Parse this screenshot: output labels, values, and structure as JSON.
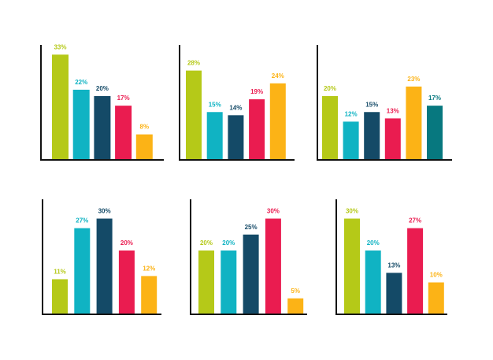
{
  "colors": {
    "axis": "#111111",
    "lime": "#b5c918",
    "cyan": "#10b3c3",
    "navy": "#144a67",
    "crimson": "#ea1c50",
    "amber": "#fcb316",
    "teal": "#07787f"
  },
  "chart_data": [
    {
      "type": "bar",
      "grid": false,
      "ylim": [
        0,
        35
      ],
      "series": [
        {
          "values": [
            33,
            22,
            20,
            17,
            8
          ]
        }
      ],
      "colors": [
        "lime",
        "cyan",
        "navy",
        "crimson",
        "amber"
      ],
      "labels": [
        "33%",
        "22%",
        "20%",
        "17%",
        "8%"
      ]
    },
    {
      "type": "bar",
      "grid": false,
      "ylim": [
        0,
        35
      ],
      "series": [
        {
          "values": [
            28,
            15,
            14,
            19,
            24
          ]
        }
      ],
      "colors": [
        "lime",
        "cyan",
        "navy",
        "crimson",
        "amber"
      ],
      "labels": [
        "28%",
        "15%",
        "14%",
        "19%",
        "24%"
      ]
    },
    {
      "type": "bar",
      "grid": false,
      "ylim": [
        0,
        35
      ],
      "series": [
        {
          "values": [
            20,
            12,
            15,
            13,
            23,
            17
          ]
        }
      ],
      "colors": [
        "lime",
        "cyan",
        "navy",
        "crimson",
        "amber",
        "teal"
      ],
      "labels": [
        "20%",
        "12%",
        "15%",
        "13%",
        "23%",
        "17%"
      ]
    },
    {
      "type": "bar",
      "grid": false,
      "ylim": [
        0,
        35
      ],
      "series": [
        {
          "values": [
            11,
            27,
            30,
            20,
            12
          ]
        }
      ],
      "colors": [
        "lime",
        "cyan",
        "navy",
        "crimson",
        "amber"
      ],
      "labels": [
        "11%",
        "27%",
        "30%",
        "20%",
        "12%"
      ]
    },
    {
      "type": "bar",
      "grid": false,
      "ylim": [
        0,
        35
      ],
      "series": [
        {
          "values": [
            20,
            20,
            25,
            30,
            5
          ]
        }
      ],
      "colors": [
        "lime",
        "cyan",
        "navy",
        "crimson",
        "amber"
      ],
      "labels": [
        "20%",
        "20%",
        "25%",
        "30%",
        "5%"
      ]
    },
    {
      "type": "bar",
      "grid": false,
      "ylim": [
        0,
        35
      ],
      "series": [
        {
          "values": [
            30,
            20,
            13,
            27,
            10
          ]
        }
      ],
      "colors": [
        "lime",
        "cyan",
        "navy",
        "crimson",
        "amber"
      ],
      "labels": [
        "30%",
        "20%",
        "13%",
        "27%",
        "10%"
      ]
    }
  ]
}
